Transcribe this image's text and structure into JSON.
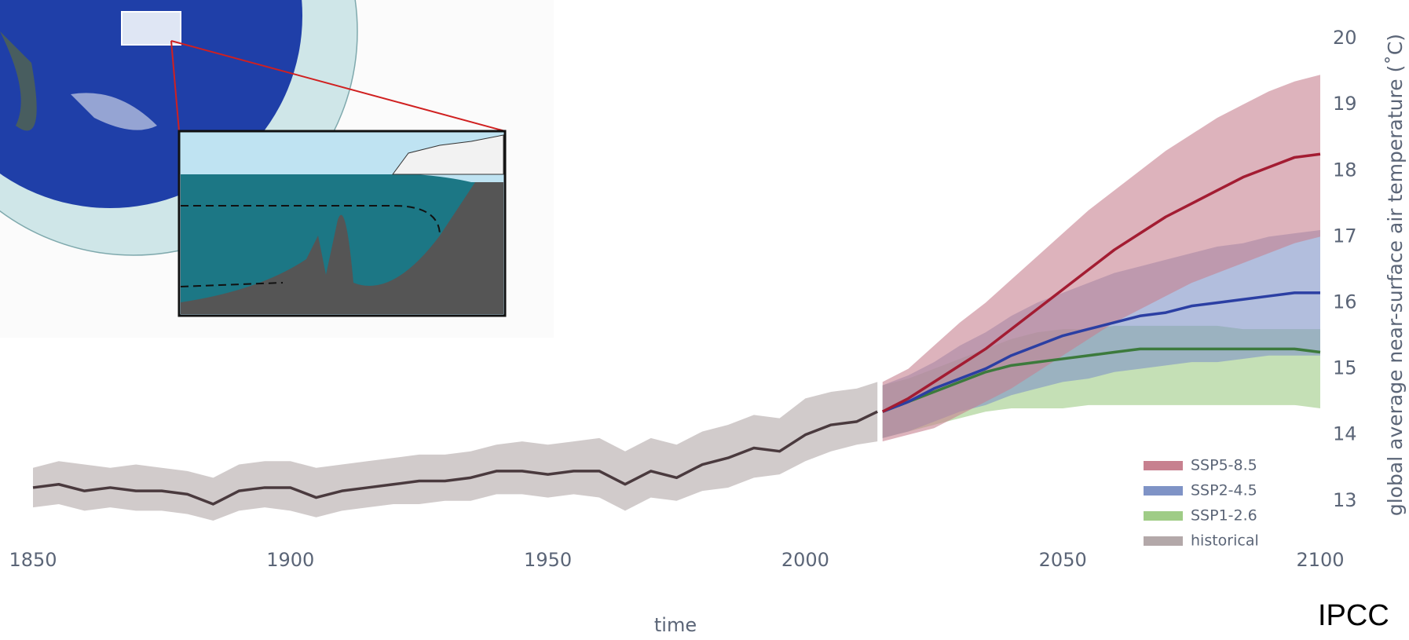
{
  "chart_data": {
    "type": "band-line",
    "x_label": "time",
    "y_label": "global average near-surface air temperature (˚C)",
    "source": "IPCC",
    "xlim": [
      1850,
      2100
    ],
    "xticks": [
      1850,
      1900,
      1950,
      2000,
      2050,
      2100
    ],
    "ylim": [
      12.7,
      20.5
    ],
    "yticks": [
      13,
      14,
      15,
      16,
      17,
      18,
      19,
      20
    ],
    "legend": "bottom-right",
    "series": [
      {
        "name": "SSP5-8.5",
        "color": "#a31c32",
        "band_color": "#c7808f",
        "x": [
          2015,
          2020,
          2025,
          2030,
          2035,
          2040,
          2045,
          2050,
          2055,
          2060,
          2065,
          2070,
          2075,
          2080,
          2085,
          2090,
          2095,
          2100
        ],
        "values": [
          14.35,
          14.55,
          14.8,
          15.05,
          15.3,
          15.6,
          15.9,
          16.2,
          16.5,
          16.8,
          17.05,
          17.3,
          17.5,
          17.7,
          17.9,
          18.05,
          18.2,
          18.25
        ],
        "lower": [
          13.9,
          14.0,
          14.1,
          14.3,
          14.5,
          14.7,
          14.95,
          15.2,
          15.45,
          15.7,
          15.9,
          16.1,
          16.3,
          16.45,
          16.6,
          16.75,
          16.9,
          17.0
        ],
        "upper": [
          14.8,
          15.0,
          15.35,
          15.7,
          16.0,
          16.35,
          16.7,
          17.05,
          17.4,
          17.7,
          18.0,
          18.3,
          18.55,
          18.8,
          19.0,
          19.2,
          19.35,
          19.45
        ]
      },
      {
        "name": "SSP2-4.5",
        "color": "#2b3fa3",
        "band_color": "#7f93c6",
        "x": [
          2015,
          2020,
          2025,
          2030,
          2035,
          2040,
          2045,
          2050,
          2055,
          2060,
          2065,
          2070,
          2075,
          2080,
          2085,
          2090,
          2095,
          2100
        ],
        "values": [
          14.35,
          14.5,
          14.7,
          14.85,
          15.0,
          15.2,
          15.35,
          15.5,
          15.6,
          15.7,
          15.8,
          15.85,
          15.95,
          16.0,
          16.05,
          16.1,
          16.15,
          16.15
        ],
        "lower": [
          13.95,
          14.05,
          14.2,
          14.35,
          14.45,
          14.6,
          14.7,
          14.8,
          14.85,
          14.95,
          15.0,
          15.05,
          15.1,
          15.1,
          15.15,
          15.2,
          15.2,
          15.2
        ],
        "upper": [
          14.75,
          14.9,
          15.1,
          15.35,
          15.55,
          15.8,
          16.0,
          16.15,
          16.3,
          16.45,
          16.55,
          16.65,
          16.75,
          16.85,
          16.9,
          17.0,
          17.05,
          17.1
        ]
      },
      {
        "name": "SSP1-2.6",
        "color": "#3c7a3c",
        "band_color": "#9fcc86",
        "x": [
          2015,
          2020,
          2025,
          2030,
          2035,
          2040,
          2045,
          2050,
          2055,
          2060,
          2065,
          2070,
          2075,
          2080,
          2085,
          2090,
          2095,
          2100
        ],
        "values": [
          14.35,
          14.5,
          14.65,
          14.8,
          14.95,
          15.05,
          15.1,
          15.15,
          15.2,
          15.25,
          15.3,
          15.3,
          15.3,
          15.3,
          15.3,
          15.3,
          15.3,
          15.25
        ],
        "lower": [
          13.95,
          14.05,
          14.15,
          14.25,
          14.35,
          14.4,
          14.4,
          14.4,
          14.45,
          14.45,
          14.45,
          14.45,
          14.45,
          14.45,
          14.45,
          14.45,
          14.45,
          14.4
        ],
        "upper": [
          14.75,
          14.85,
          15.0,
          15.15,
          15.3,
          15.45,
          15.55,
          15.6,
          15.6,
          15.65,
          15.65,
          15.65,
          15.65,
          15.65,
          15.6,
          15.6,
          15.6,
          15.6
        ]
      },
      {
        "name": "historical",
        "color": "#4a3a3e",
        "band_color": "#b3a8a9",
        "x": [
          1850,
          1855,
          1860,
          1865,
          1870,
          1875,
          1880,
          1885,
          1890,
          1895,
          1900,
          1905,
          1910,
          1915,
          1920,
          1925,
          1930,
          1935,
          1940,
          1945,
          1950,
          1955,
          1960,
          1965,
          1970,
          1975,
          1980,
          1985,
          1990,
          1995,
          2000,
          2005,
          2010,
          2014
        ],
        "values": [
          13.2,
          13.25,
          13.15,
          13.2,
          13.15,
          13.15,
          13.1,
          12.95,
          13.15,
          13.2,
          13.2,
          13.05,
          13.15,
          13.2,
          13.25,
          13.3,
          13.3,
          13.35,
          13.45,
          13.45,
          13.4,
          13.45,
          13.45,
          13.25,
          13.45,
          13.35,
          13.55,
          13.65,
          13.8,
          13.75,
          14.0,
          14.15,
          14.2,
          14.35
        ],
        "lower": [
          12.9,
          12.95,
          12.85,
          12.9,
          12.85,
          12.85,
          12.8,
          12.7,
          12.85,
          12.9,
          12.85,
          12.75,
          12.85,
          12.9,
          12.95,
          12.95,
          13.0,
          13.0,
          13.1,
          13.1,
          13.05,
          13.1,
          13.05,
          12.85,
          13.05,
          13.0,
          13.15,
          13.2,
          13.35,
          13.4,
          13.6,
          13.75,
          13.85,
          13.9
        ],
        "upper": [
          13.5,
          13.6,
          13.55,
          13.5,
          13.55,
          13.5,
          13.45,
          13.35,
          13.55,
          13.6,
          13.6,
          13.5,
          13.55,
          13.6,
          13.65,
          13.7,
          13.7,
          13.75,
          13.85,
          13.9,
          13.85,
          13.9,
          13.95,
          13.75,
          13.95,
          13.85,
          14.05,
          14.15,
          14.3,
          14.25,
          14.55,
          14.65,
          14.7,
          14.8
        ]
      }
    ]
  }
}
